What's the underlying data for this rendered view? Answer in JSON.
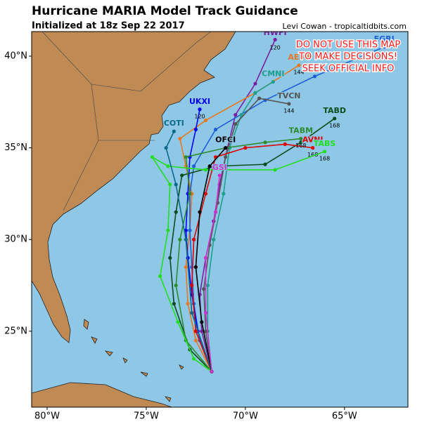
{
  "chart_data": {
    "type": "track-map",
    "title": "Hurricane MARIA Model Track Guidance",
    "subtitle": "Initialized at 18z Sep 22 2017",
    "credit": "Levi Cowan - tropicaltidbits.com",
    "warning": [
      "DO NOT USE THIS MAP",
      "TO MAKE DECISIONS!",
      "SEEK OFFICIAL INFO"
    ],
    "xlim": [
      -80.78,
      -61.8
    ],
    "ylim": [
      20.86,
      41.34
    ],
    "xticks": [
      {
        "value": -80,
        "label": "80°W"
      },
      {
        "value": -75,
        "label": "75°W"
      },
      {
        "value": -70,
        "label": "70°W"
      },
      {
        "value": -65,
        "label": "65°W"
      }
    ],
    "yticks": [
      {
        "value": 25,
        "label": "25°N"
      },
      {
        "value": 30,
        "label": "30°N"
      },
      {
        "value": 35,
        "label": "35°N"
      },
      {
        "value": 40,
        "label": "40°N"
      }
    ],
    "models": [
      {
        "name": "HWFI",
        "color": "#7b1fa2",
        "end_hour": 120,
        "lon": [
          -71.7,
          -72.2,
          -72.3,
          -72.0,
          -71.6,
          -71.3,
          -70.9,
          -70.5,
          -69.5,
          -68.5
        ],
        "lat": [
          22.8,
          25.0,
          27.0,
          29.0,
          31.0,
          33.0,
          35.0,
          36.8,
          38.5,
          40.9
        ]
      },
      {
        "name": "AEMI",
        "color": "#e87722",
        "end_hour": 144,
        "lon": [
          -71.7,
          -72.5,
          -72.9,
          -73.0,
          -72.8,
          -72.7,
          -73.0,
          -73.3,
          -72.0,
          -69.5,
          -67.3
        ],
        "lat": [
          22.8,
          24.5,
          26.5,
          28.5,
          30.5,
          32.5,
          34.0,
          35.5,
          36.5,
          38.0,
          39.5
        ]
      },
      {
        "name": "EGRI",
        "color": "#1f5fd6",
        "lon": [
          -71.7,
          -72.3,
          -72.6,
          -72.7,
          -72.8,
          -72.8,
          -72.6,
          -71.5,
          -69.0,
          -66.5,
          -63.0
        ],
        "lat": [
          22.8,
          24.5,
          26.5,
          28.5,
          30.5,
          32.5,
          34.0,
          36.0,
          37.6,
          38.9,
          40.5
        ]
      },
      {
        "name": "UKXI",
        "color": "#0000ff",
        "end_hour": 120,
        "lon": [
          -71.7,
          -72.4,
          -72.7,
          -72.9,
          -73.0,
          -72.9,
          -72.8,
          -72.5,
          -72.3
        ],
        "lat": [
          22.8,
          25.0,
          27.0,
          29.0,
          30.5,
          32.5,
          34.5,
          36.0,
          37.1
        ]
      },
      {
        "name": "CMNI",
        "color": "#1e9e8c",
        "lon": [
          -71.7,
          -71.9,
          -71.9,
          -71.6,
          -71.1,
          -70.8,
          -70.2,
          -69.5,
          -68.6
        ],
        "lat": [
          22.8,
          25.0,
          27.5,
          30.0,
          32.5,
          35.0,
          36.8,
          38.0,
          38.6
        ]
      },
      {
        "name": "TVCN",
        "color": "#555555",
        "end_hour": 144,
        "lon": [
          -71.7,
          -72.0,
          -72.1,
          -71.8,
          -71.4,
          -71.0,
          -70.5,
          -69.3,
          -67.8
        ],
        "lat": [
          22.8,
          25.0,
          27.3,
          29.7,
          32.0,
          34.5,
          36.3,
          37.7,
          37.4
        ]
      },
      {
        "name": "TABD",
        "color": "#0b4d1c",
        "end_hour": 168,
        "lon": [
          -71.7,
          -72.8,
          -73.6,
          -73.8,
          -73.5,
          -73.2,
          -71.5,
          -69.0,
          -67.2,
          -65.5
        ],
        "lat": [
          22.8,
          24.0,
          26.5,
          29.0,
          31.5,
          33.5,
          34.0,
          34.1,
          35.3,
          36.6
        ]
      },
      {
        "name": "AVNI",
        "color": "#e00000",
        "end_hour": 168,
        "lon": [
          -71.7,
          -72.5,
          -72.7,
          -72.6,
          -72.0,
          -71.5,
          -70.0,
          -68.0,
          -66.6
        ],
        "lat": [
          22.8,
          25.0,
          27.5,
          30.0,
          32.5,
          34.5,
          35.0,
          35.2,
          35.0
        ]
      },
      {
        "name": "TABM",
        "color": "#2e8b2e",
        "end_hour": 168,
        "lon": [
          -71.7,
          -73.0,
          -73.5,
          -73.3,
          -72.8,
          -73.0,
          -71.0,
          -69.0,
          -67.2
        ],
        "lat": [
          22.8,
          24.5,
          27.5,
          30.0,
          32.5,
          34.5,
          35.0,
          35.3,
          35.5
        ]
      },
      {
        "name": "TABS",
        "color": "#22dd22",
        "end_hour": 168,
        "lon": [
          -71.7,
          -72.6,
          -73.4,
          -74.3,
          -73.9,
          -73.8,
          -74.7,
          -73.9,
          -72.0,
          -68.5,
          -66.0
        ],
        "lat": [
          22.8,
          23.5,
          25.5,
          28.0,
          30.5,
          33.0,
          34.5,
          34.0,
          33.8,
          33.8,
          34.8
        ]
      },
      {
        "name": "COTI",
        "color": "#0a6a8a",
        "lon": [
          -71.7,
          -72.7,
          -73.0,
          -73.5,
          -74.0,
          -73.6
        ],
        "lat": [
          22.8,
          26.0,
          30.0,
          33.0,
          35.0,
          35.9
        ]
      },
      {
        "name": "OFCI",
        "color": "#000000",
        "lon": [
          -71.7,
          -72.2,
          -72.5,
          -72.3,
          -71.8,
          -71.0
        ],
        "lat": [
          22.8,
          25.5,
          28.5,
          31.5,
          34.0,
          35.0
        ]
      },
      {
        "name": "GSI",
        "color": "#cc33cc",
        "lon": [
          -71.7,
          -72.0,
          -72.0,
          -71.5,
          -71.3
        ],
        "lat": [
          22.8,
          26.0,
          29.0,
          31.5,
          33.5
        ]
      }
    ]
  }
}
